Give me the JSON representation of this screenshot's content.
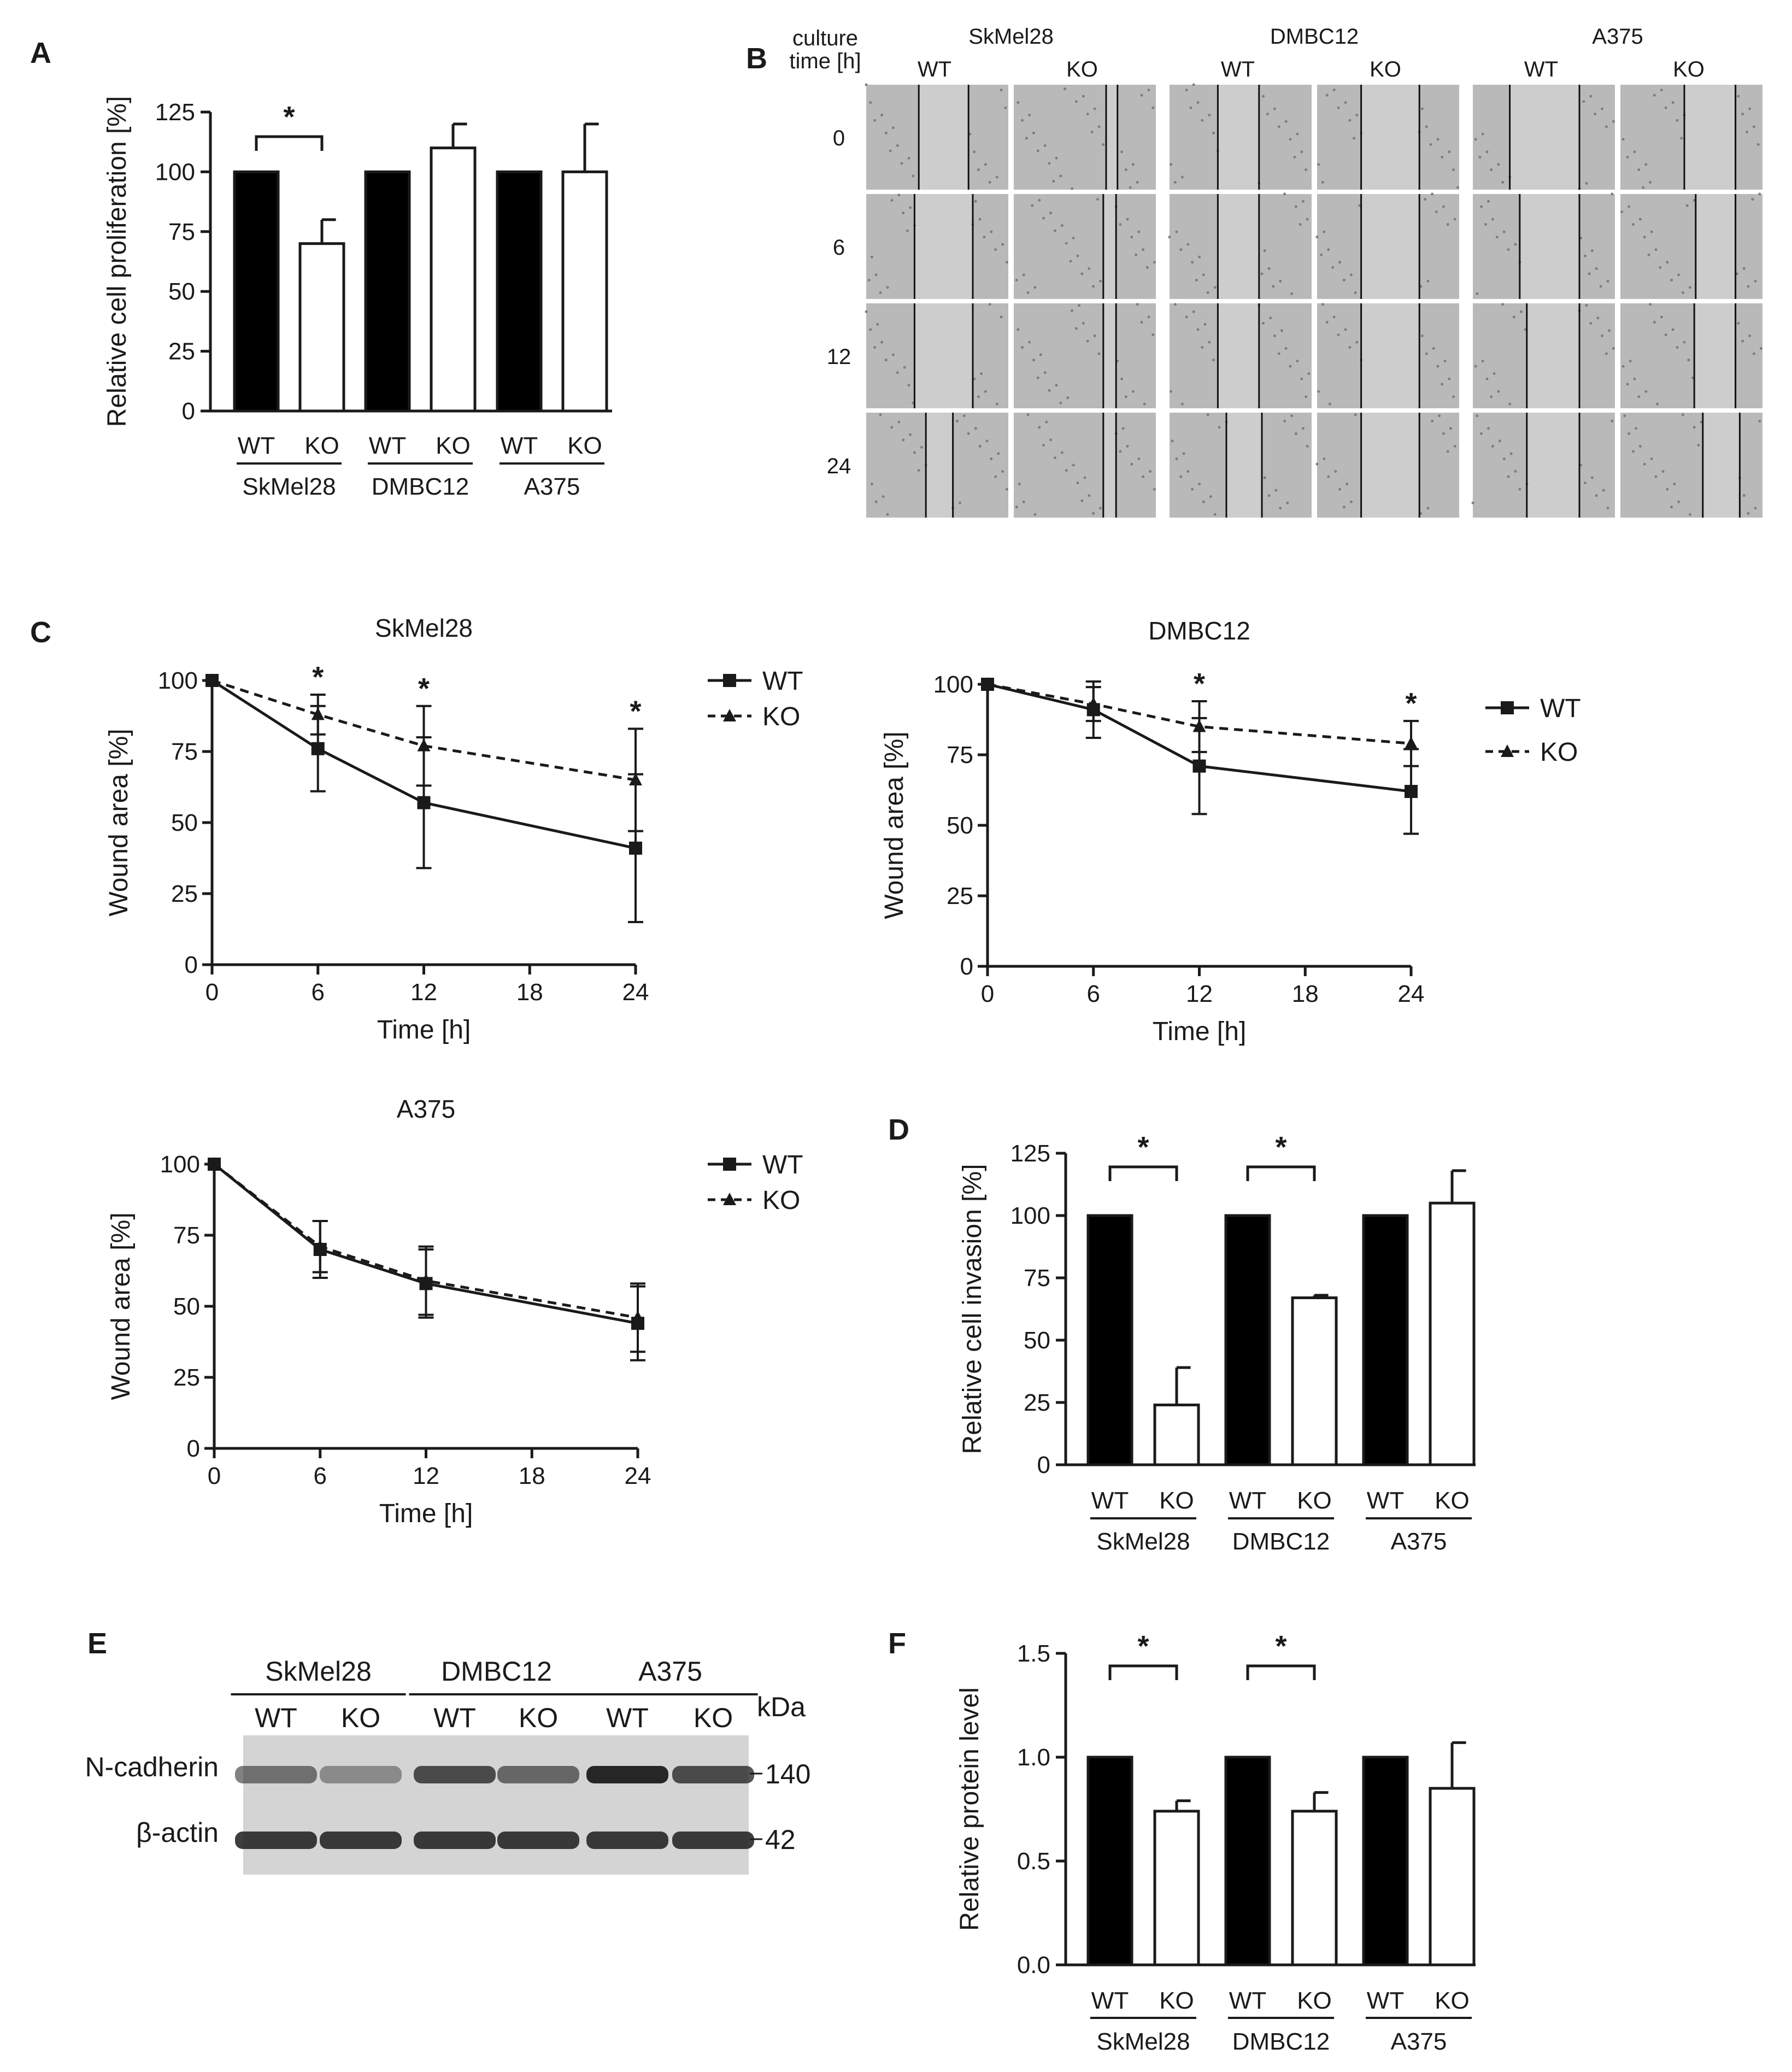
{
  "panel_labels": {
    "a": "A",
    "b": "B",
    "c": "C",
    "d": "D",
    "e": "E",
    "f": "F"
  },
  "colors": {
    "wt_fill": "#000000",
    "ko_fill": "#ffffff",
    "axis": "#1a1a1a",
    "micrograph": "#b9b9b9",
    "blot_bg": "#d4d4d4",
    "blot_band": "#1c1c1c"
  },
  "chart_data": [
    {
      "id": "A",
      "type": "bar",
      "ylabel": "Relative cell proliferation [%]",
      "yticks": [
        0,
        25,
        50,
        75,
        100,
        125
      ],
      "ylim": [
        0,
        125
      ],
      "conditions": [
        "WT",
        "KO"
      ],
      "groups": [
        "SkMel28",
        "DMBC12",
        "A375"
      ],
      "series": [
        {
          "name": "WT",
          "values": [
            100,
            100,
            100
          ],
          "errors": [
            0,
            0,
            0
          ]
        },
        {
          "name": "KO",
          "values": [
            70,
            110,
            100
          ],
          "errors": [
            10,
            10,
            20
          ]
        }
      ],
      "significance": [
        {
          "group": "SkMel28",
          "label": "*"
        }
      ]
    },
    {
      "id": "C-SkMel28",
      "type": "line",
      "title": "SkMel28",
      "xlabel": "Time [h]",
      "ylabel": "Wound area [%]",
      "x": [
        0,
        6,
        12,
        24
      ],
      "xticks": [
        0,
        6,
        12,
        18,
        24
      ],
      "xlim": [
        0,
        24
      ],
      "yticks": [
        0,
        25,
        50,
        75,
        100
      ],
      "ylim": [
        0,
        100
      ],
      "series": [
        {
          "name": "WT",
          "marker": "square",
          "values": [
            100,
            76,
            57,
            41
          ],
          "errors": [
            0,
            15,
            23,
            26
          ]
        },
        {
          "name": "KO",
          "marker": "triangle",
          "values": [
            100,
            88,
            77,
            65
          ],
          "errors": [
            0,
            7,
            14,
            18
          ]
        }
      ],
      "significance": [
        {
          "x": 6,
          "label": "*"
        },
        {
          "x": 12,
          "label": "*"
        },
        {
          "x": 24,
          "label": "*"
        }
      ]
    },
    {
      "id": "C-DMBC12",
      "type": "line",
      "title": "DMBC12",
      "xlabel": "Time [h]",
      "ylabel": "Wound area [%]",
      "x": [
        0,
        6,
        12,
        24
      ],
      "xticks": [
        0,
        6,
        12,
        18,
        24
      ],
      "xlim": [
        0,
        24
      ],
      "yticks": [
        0,
        25,
        50,
        75,
        100
      ],
      "ylim": [
        0,
        100
      ],
      "series": [
        {
          "name": "WT",
          "marker": "square",
          "values": [
            100,
            91,
            71,
            62
          ],
          "errors": [
            0,
            10,
            17,
            15
          ]
        },
        {
          "name": "KO",
          "marker": "triangle",
          "values": [
            100,
            93,
            85,
            79
          ],
          "errors": [
            0,
            6,
            9,
            8
          ]
        }
      ],
      "significance": [
        {
          "x": 12,
          "label": "*"
        },
        {
          "x": 24,
          "label": "*"
        }
      ]
    },
    {
      "id": "C-A375",
      "type": "line",
      "title": "A375",
      "xlabel": "Time [h]",
      "ylabel": "Wound area [%]",
      "x": [
        0,
        6,
        12,
        24
      ],
      "xticks": [
        0,
        6,
        12,
        18,
        24
      ],
      "xlim": [
        0,
        24
      ],
      "yticks": [
        0,
        25,
        50,
        75,
        100
      ],
      "ylim": [
        0,
        100
      ],
      "series": [
        {
          "name": "WT",
          "marker": "square",
          "values": [
            100,
            70,
            58,
            44
          ],
          "errors": [
            0,
            10,
            12,
            13
          ]
        },
        {
          "name": "KO",
          "marker": "triangle",
          "values": [
            100,
            71,
            59,
            46
          ],
          "errors": [
            0,
            9,
            12,
            12
          ]
        }
      ],
      "significance": []
    },
    {
      "id": "D",
      "type": "bar",
      "ylabel": "Relative cell invasion [%]",
      "yticks": [
        0,
        25,
        50,
        75,
        100,
        125
      ],
      "ylim": [
        0,
        125
      ],
      "conditions": [
        "WT",
        "KO"
      ],
      "groups": [
        "SkMel28",
        "DMBC12",
        "A375"
      ],
      "series": [
        {
          "name": "WT",
          "values": [
            100,
            100,
            100
          ],
          "errors": [
            0,
            0,
            0
          ]
        },
        {
          "name": "KO",
          "values": [
            24,
            67,
            105
          ],
          "errors": [
            15,
            1,
            13
          ]
        }
      ],
      "significance": [
        {
          "group": "SkMel28",
          "label": "*"
        },
        {
          "group": "DMBC12",
          "label": "*"
        }
      ]
    },
    {
      "id": "F",
      "type": "bar",
      "ylabel": "Relative protein level",
      "yticks": [
        0.0,
        0.5,
        1.0,
        1.5
      ],
      "yticklabels": [
        "0.0",
        "0.5",
        "1.0",
        "1.5"
      ],
      "ylim": [
        0,
        1.5
      ],
      "conditions": [
        "WT",
        "KO"
      ],
      "groups": [
        "SkMel28",
        "DMBC12",
        "A375"
      ],
      "series": [
        {
          "name": "WT",
          "values": [
            1.0,
            1.0,
            1.0
          ],
          "errors": [
            0,
            0,
            0
          ]
        },
        {
          "name": "KO",
          "values": [
            0.74,
            0.74,
            0.85
          ],
          "errors": [
            0.05,
            0.09,
            0.22
          ]
        }
      ],
      "significance": [
        {
          "group": "SkMel28",
          "label": "*"
        },
        {
          "group": "DMBC12",
          "label": "*"
        }
      ]
    }
  ],
  "panel_b": {
    "culture_time_label": [
      "culture",
      "time [h]"
    ],
    "cell_lines": [
      "SkMel28",
      "DMBC12",
      "A375"
    ],
    "conditions": [
      "WT",
      "KO"
    ],
    "times": [
      "0",
      "6",
      "12",
      "24"
    ]
  },
  "panel_e": {
    "cell_lines": [
      "SkMel28",
      "DMBC12",
      "A375"
    ],
    "conditions": [
      "WT",
      "KO"
    ],
    "kda_label": "kDa",
    "proteins": [
      {
        "name": "N-cadherin",
        "kda": "140",
        "band_intensity": [
          0.55,
          0.4,
          0.75,
          0.6,
          0.95,
          0.75
        ]
      },
      {
        "name": "β-actin",
        "kda": "42",
        "band_intensity": [
          0.85,
          0.85,
          0.85,
          0.85,
          0.85,
          0.85
        ]
      }
    ]
  }
}
